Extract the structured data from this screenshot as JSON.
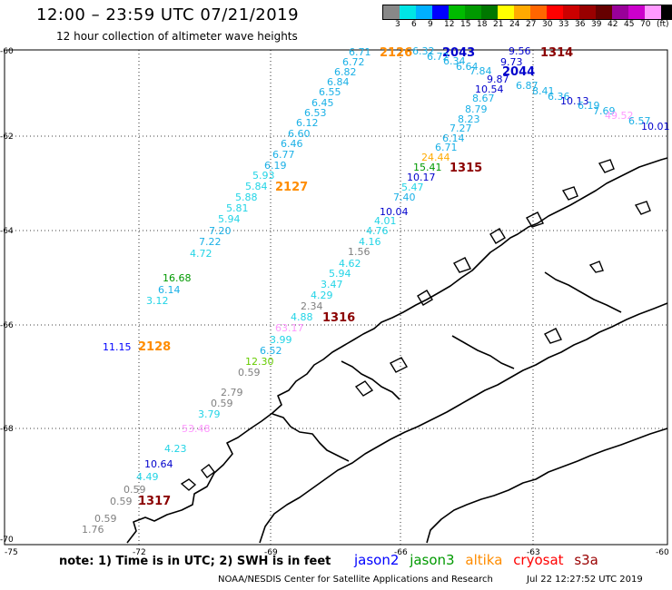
{
  "header": {
    "title": "12:00 – 23:59 UTC 07/21/2019",
    "subtitle": "12 hour collection of altimeter wave heights"
  },
  "legend": {
    "colors": [
      "#888888",
      "#00e5e5",
      "#00b0ff",
      "#0000ff",
      "#00bb00",
      "#009900",
      "#007700",
      "#ffff00",
      "#ffaa00",
      "#ff6600",
      "#ff0000",
      "#cc0000",
      "#990000",
      "#660000",
      "#990099",
      "#cc00cc",
      "#ff99ff",
      "#000000"
    ],
    "labels": [
      "3",
      "6",
      "9",
      "12",
      "15",
      "18",
      "21",
      "24",
      "27",
      "30",
      "33",
      "36",
      "39",
      "42",
      "45",
      "70",
      "(ft)"
    ]
  },
  "axes": {
    "lat_labels": [
      "-60",
      "-62",
      "-64",
      "-66",
      "-68",
      "-70"
    ],
    "lon_labels": [
      "-75",
      "-72",
      "-69",
      "-66",
      "-63",
      "-60"
    ]
  },
  "orbits": [
    {
      "label": "2126",
      "color": "#ff8c00"
    },
    {
      "label": "2043",
      "color": "#0000cc"
    },
    {
      "label": "1314",
      "color": "#8b0000"
    },
    {
      "label": "2044",
      "color": "#0000cc"
    },
    {
      "label": "1315",
      "color": "#8b0000"
    },
    {
      "label": "2127",
      "color": "#ff8c00"
    },
    {
      "label": "1316",
      "color": "#8b0000"
    },
    {
      "label": "2128",
      "color": "#ff8c00"
    },
    {
      "label": "1317",
      "color": "#8b0000"
    }
  ],
  "observations": [
    {
      "text": "6.71",
      "color": "#1ab0e6"
    },
    {
      "text": "6.72",
      "color": "#1ab0e6"
    },
    {
      "text": "6.82",
      "color": "#1ab0e6"
    },
    {
      "text": "6.84",
      "color": "#1ab0e6"
    },
    {
      "text": "6.55",
      "color": "#1ab0e6"
    },
    {
      "text": "6.45",
      "color": "#1ab0e6"
    },
    {
      "text": "6.53",
      "color": "#1ab0e6"
    },
    {
      "text": "6.12",
      "color": "#1ab0e6"
    },
    {
      "text": "6.60",
      "color": "#1ab0e6"
    },
    {
      "text": "6.46",
      "color": "#1ab0e6"
    },
    {
      "text": "6.77",
      "color": "#1ab0e6"
    },
    {
      "text": "6.19",
      "color": "#1ab0e6"
    },
    {
      "text": "5.93",
      "color": "#22d4e6"
    },
    {
      "text": "5.84",
      "color": "#22d4e6"
    },
    {
      "text": "5.88",
      "color": "#22d4e6"
    },
    {
      "text": "5.81",
      "color": "#22d4e6"
    },
    {
      "text": "5.94",
      "color": "#22d4e6"
    },
    {
      "text": "7.20",
      "color": "#1ab0e6"
    },
    {
      "text": "7.22",
      "color": "#1ab0e6"
    },
    {
      "text": "4.72",
      "color": "#22d4e6"
    },
    {
      "text": "16.68",
      "color": "#009900"
    },
    {
      "text": "6.14",
      "color": "#1ab0e6"
    },
    {
      "text": "3.12",
      "color": "#22d4e6"
    },
    {
      "text": "11.15",
      "color": "#0000ff"
    },
    {
      "text": "6.32",
      "color": "#1ab0e6"
    },
    {
      "text": "6.72",
      "color": "#1ab0e6"
    },
    {
      "text": "6.34",
      "color": "#1ab0e6"
    },
    {
      "text": "6.64",
      "color": "#1ab0e6"
    },
    {
      "text": "7.84",
      "color": "#1ab0e6"
    },
    {
      "text": "9.56",
      "color": "#0000cc"
    },
    {
      "text": "9.73",
      "color": "#0000cc"
    },
    {
      "text": "10.54",
      "color": "#0000cc"
    },
    {
      "text": "9.87",
      "color": "#0000cc"
    },
    {
      "text": "6.87",
      "color": "#1ab0e6"
    },
    {
      "text": "8.41",
      "color": "#1ab0e6"
    },
    {
      "text": "6.36",
      "color": "#1ab0e6"
    },
    {
      "text": "10.13",
      "color": "#0000cc"
    },
    {
      "text": "6.19",
      "color": "#1ab0e6"
    },
    {
      "text": "7.69",
      "color": "#1ab0e6"
    },
    {
      "text": "49.52",
      "color": "#ff99ff"
    },
    {
      "text": "6.57",
      "color": "#1ab0e6"
    },
    {
      "text": "10.01",
      "color": "#0000cc"
    },
    {
      "text": "8.67",
      "color": "#1ab0e6"
    },
    {
      "text": "8.79",
      "color": "#1ab0e6"
    },
    {
      "text": "8.23",
      "color": "#1ab0e6"
    },
    {
      "text": "7.27",
      "color": "#1ab0e6"
    },
    {
      "text": "6.14",
      "color": "#1ab0e6"
    },
    {
      "text": "6.71",
      "color": "#1ab0e6"
    },
    {
      "text": "24.44",
      "color": "#ffaa00"
    },
    {
      "text": "15.41",
      "color": "#009900"
    },
    {
      "text": "10.17",
      "color": "#0000cc"
    },
    {
      "text": "5.47",
      "color": "#22d4e6"
    },
    {
      "text": "7.40",
      "color": "#1ab0e6"
    },
    {
      "text": "10.04",
      "color": "#0000cc"
    },
    {
      "text": "4.01",
      "color": "#22d4e6"
    },
    {
      "text": "4.76",
      "color": "#22d4e6"
    },
    {
      "text": "4.16",
      "color": "#22d4e6"
    },
    {
      "text": "1.56",
      "color": "#808080"
    },
    {
      "text": "4.62",
      "color": "#22d4e6"
    },
    {
      "text": "5.94",
      "color": "#22d4e6"
    },
    {
      "text": "3.47",
      "color": "#22d4e6"
    },
    {
      "text": "4.29",
      "color": "#22d4e6"
    },
    {
      "text": "2.34",
      "color": "#808080"
    },
    {
      "text": "4.88",
      "color": "#22d4e6"
    },
    {
      "text": "63.17",
      "color": "#ff99ff"
    },
    {
      "text": "3.99",
      "color": "#22d4e6"
    },
    {
      "text": "6.52",
      "color": "#1ab0e6"
    },
    {
      "text": "12.30",
      "color": "#66cc00"
    },
    {
      "text": "0.59",
      "color": "#808080"
    },
    {
      "text": "2.79",
      "color": "#808080"
    },
    {
      "text": "0.59",
      "color": "#808080"
    },
    {
      "text": "3.79",
      "color": "#22d4e6"
    },
    {
      "text": "53.48",
      "color": "#ff99ff"
    },
    {
      "text": "4.23",
      "color": "#22d4e6"
    },
    {
      "text": "10.64",
      "color": "#0000cc"
    },
    {
      "text": "4.49",
      "color": "#22d4e6"
    },
    {
      "text": "0.59",
      "color": "#808080"
    },
    {
      "text": "0.59",
      "color": "#808080"
    },
    {
      "text": "0.59",
      "color": "#808080"
    },
    {
      "text": "1.76",
      "color": "#808080"
    }
  ],
  "footer": {
    "note": "note:  1) Time is in UTC;  2) SWH is in feet",
    "satellites": [
      {
        "name": "jason2",
        "color": "#0000ff"
      },
      {
        "name": "jason3",
        "color": "#009900"
      },
      {
        "name": "altika",
        "color": "#ff8c00"
      },
      {
        "name": "cryosat",
        "color": "#ff0000"
      },
      {
        "name": "s3a",
        "color": "#990000"
      }
    ],
    "credit": "NOAA/NESDIS Center for Satellite Applications and Research",
    "timestamp": "Jul 22 12:27:52 UTC 2019"
  }
}
